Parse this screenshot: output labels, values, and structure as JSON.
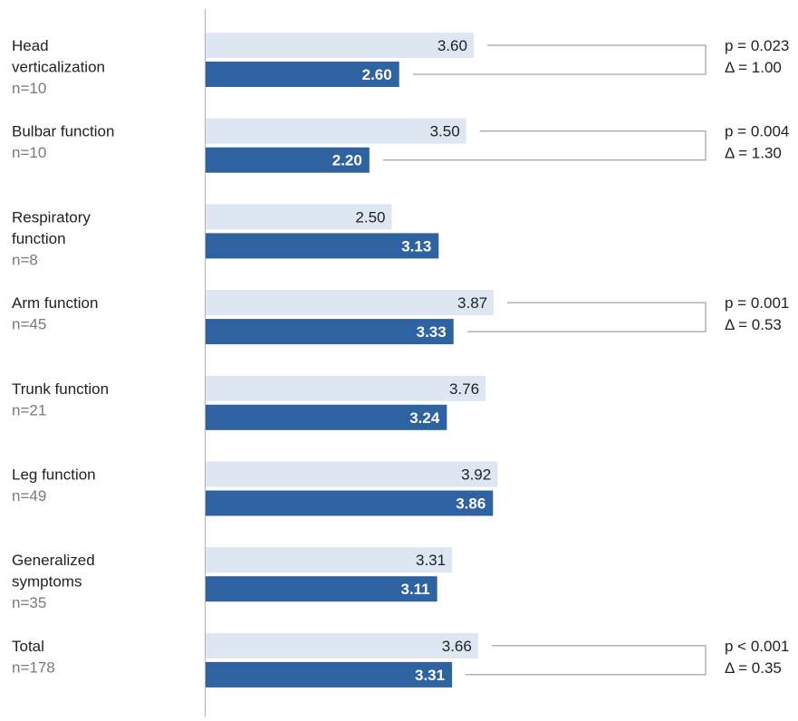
{
  "chart_data": {
    "type": "bar",
    "orientation": "horizontal",
    "title": "",
    "xlabel": "",
    "ylabel": "",
    "xlim": [
      0,
      4.5
    ],
    "grid": false,
    "legend": "none",
    "colors": {
      "series_a": "#dde6f1",
      "series_b": "#2e62a1",
      "baseline": "#b3b3b3",
      "bracket": "#8c8c8c",
      "text": "#222222",
      "n_text": "#7a7a7a"
    },
    "categories": [
      {
        "label": "Head verticalization",
        "label_lines": [
          "Head",
          "verticalization"
        ],
        "n": "n=10"
      },
      {
        "label": "Bulbar function",
        "label_lines": [
          "Bulbar function"
        ],
        "n": "n=10"
      },
      {
        "label": "Respiratory function",
        "label_lines": [
          "Respiratory",
          "function"
        ],
        "n": "n=8"
      },
      {
        "label": "Arm function",
        "label_lines": [
          "Arm function"
        ],
        "n": "n=45"
      },
      {
        "label": "Trunk function",
        "label_lines": [
          "Trunk function"
        ],
        "n": "n=21"
      },
      {
        "label": "Leg function",
        "label_lines": [
          "Leg function"
        ],
        "n": "n=49"
      },
      {
        "label": "Generalized symptoms",
        "label_lines": [
          "Generalized",
          "symptoms"
        ],
        "n": "n=35"
      },
      {
        "label": "Total",
        "label_lines": [
          "Total"
        ],
        "n": "n=178"
      }
    ],
    "series": [
      {
        "values": [
          3.6,
          3.5,
          2.5,
          3.87,
          3.76,
          3.92,
          3.31,
          3.66
        ],
        "labels": [
          "3.60",
          "3.50",
          "2.50",
          "3.87",
          "3.76",
          "3.92",
          "3.31",
          "3.66"
        ]
      },
      {
        "values": [
          2.6,
          2.2,
          3.13,
          3.33,
          3.24,
          3.86,
          3.11,
          3.31
        ],
        "labels": [
          "2.60",
          "2.20",
          "3.13",
          "3.33",
          "3.24",
          "3.86",
          "3.11",
          "3.31"
        ]
      }
    ],
    "annotations": [
      {
        "category_index": 0,
        "p": "p = 0.023",
        "delta": "Δ = 1.00"
      },
      {
        "category_index": 1,
        "p": "p = 0.004",
        "delta": "Δ = 1.30"
      },
      {
        "category_index": 3,
        "p": "p = 0.001",
        "delta": "Δ = 0.53"
      },
      {
        "category_index": 7,
        "p": "p < 0.001",
        "delta": "Δ = 0.35"
      }
    ]
  }
}
